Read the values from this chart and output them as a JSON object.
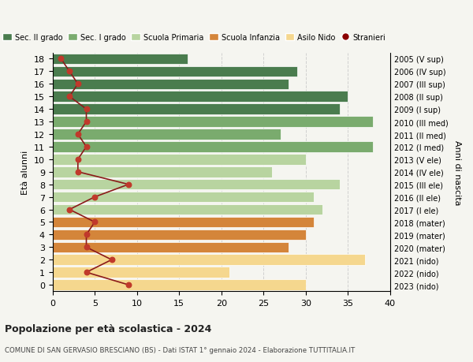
{
  "ages": [
    18,
    17,
    16,
    15,
    14,
    13,
    12,
    11,
    10,
    9,
    8,
    7,
    6,
    5,
    4,
    3,
    2,
    1,
    0
  ],
  "years": [
    "2005 (V sup)",
    "2006 (IV sup)",
    "2007 (III sup)",
    "2008 (II sup)",
    "2009 (I sup)",
    "2010 (III med)",
    "2011 (II med)",
    "2012 (I med)",
    "2013 (V ele)",
    "2014 (IV ele)",
    "2015 (III ele)",
    "2016 (II ele)",
    "2017 (I ele)",
    "2018 (mater)",
    "2019 (mater)",
    "2020 (mater)",
    "2021 (nido)",
    "2022 (nido)",
    "2023 (nido)"
  ],
  "bar_values": [
    16,
    29,
    28,
    35,
    34,
    38,
    27,
    38,
    30,
    26,
    34,
    31,
    32,
    31,
    30,
    28,
    37,
    21,
    30
  ],
  "bar_colors": [
    "#4a7c4e",
    "#4a7c4e",
    "#4a7c4e",
    "#4a7c4e",
    "#4a7c4e",
    "#7aab6e",
    "#7aab6e",
    "#7aab6e",
    "#b8d4a0",
    "#b8d4a0",
    "#b8d4a0",
    "#b8d4a0",
    "#b8d4a0",
    "#d4853a",
    "#d4853a",
    "#d4853a",
    "#f5d78e",
    "#f5d78e",
    "#f5d78e"
  ],
  "stranieri_values": [
    1,
    2,
    3,
    2,
    4,
    4,
    3,
    4,
    3,
    3,
    9,
    5,
    2,
    5,
    4,
    4,
    7,
    4,
    9
  ],
  "title": "Popolazione per età scolastica - 2024",
  "subtitle": "COMUNE DI SAN GERVASIO BRESCIANO (BS) - Dati ISTAT 1° gennaio 2024 - Elaborazione TUTTITALIA.IT",
  "ylabel_left": "Età alunni",
  "ylabel_right": "Anni di nascita",
  "xlim": [
    0,
    40
  ],
  "legend_labels": [
    "Sec. II grado",
    "Sec. I grado",
    "Scuola Primaria",
    "Scuola Infanzia",
    "Asilo Nido",
    "Stranieri"
  ],
  "legend_colors": [
    "#4a7c4e",
    "#7aab6e",
    "#b8d4a0",
    "#d4853a",
    "#f5d78e",
    "#8b0000"
  ],
  "bg_color": "#f5f5f0",
  "grid_color": "#cccccc",
  "stranieri_line_color": "#8b1a1a",
  "stranieri_dot_color": "#c0392b"
}
